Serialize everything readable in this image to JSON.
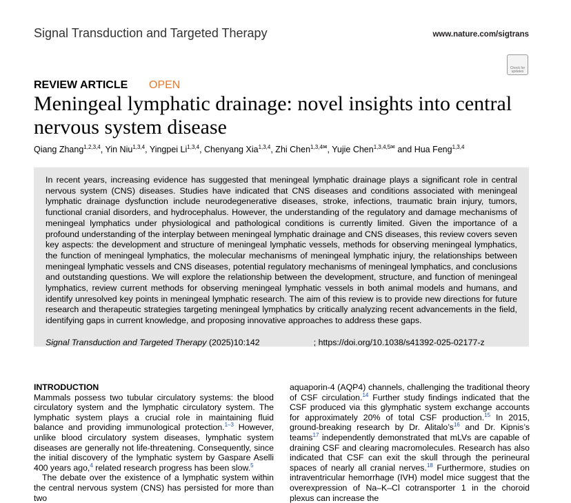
{
  "header": {
    "journal": "Signal Transduction and Targeted Therapy",
    "url": "www.nature.com/sigtrans",
    "badge": "Check for updates"
  },
  "article": {
    "type": "REVIEW ARTICLE",
    "access": "OPEN",
    "title": "Meningeal lymphatic drainage: novel insights into central nervous system disease",
    "authors": [
      "Qiang Zhang",
      {
        "sup": "1,2,3,4"
      },
      ", Yin Niu",
      {
        "sup": "1,3,4"
      },
      ", Yingpei Li",
      {
        "sup": "1,3,4"
      },
      ", Chenyang Xia",
      {
        "sup": "1,3,4"
      },
      ", Zhi Chen",
      {
        "sup": "1,3,4✉"
      },
      ", Yujie Chen",
      {
        "sup": "1,3,4,5✉"
      },
      " and Hua Feng",
      {
        "sup": "1,3,4"
      }
    ]
  },
  "abstract": {
    "text": "In recent years, increasing evidence has suggested that meningeal lymphatic drainage plays a significant role in central nervous system (CNS) diseases. Studies have indicated that CNS diseases and conditions associated with meningeal lymphatic drainage dysfunction include neurodegenerative diseases, stroke, infections, traumatic brain injury, tumors, functional cranial disorders, and hydrocephalus. However, the understanding of the regulatory and damage mechanisms of meningeal lymphatics under physiological and pathological conditions is currently limited. Given the importance of a profound understanding of the interplay between meningeal lymphatic drainage and CNS diseases, this review covers seven key aspects: the development and structure of meningeal lymphatic vessels, methods for observing meningeal lymphatics, the function of meningeal lymphatics, the molecular mechanisms of meningeal lymphatic injury, the relationships between meningeal lymphatic vessels and CNS diseases, potential regulatory mechanisms of meningeal lymphatics, and conclusions and outstanding questions. We will explore the relationship between the development, structure, and function of meningeal lymphatics, review current methods for observing meningeal lymphatic vessels in both animal models and humans, and identify unresolved key points in meningeal lymphatic research. The aim of this review is to provide new directions for future research and therapeutic strategies targeting meningeal lymphatics by critically analyzing recent advancements in the field, identifying gaps in current knowledge, and proposing innovative approaches to address these gaps.",
    "citation": {
      "journal": "Signal Transduction and Targeted Therapy",
      "volume": "(2025)10:142",
      "doi": "; https://doi.org/10.1038/s41392-025-02177-z"
    }
  },
  "body": {
    "heading": "INTRODUCTION",
    "left": [
      [
        "Mammals possess two tubular circulatory systems: the blood circulatory system and the lymphatic circulatory system. The lymphatic system plays a crucial role in maintaining fluid balance and providing immunological protection.",
        {
          "sup": "1–3"
        },
        " However, unlike blood circulatory system diseases, lymphatic system diseases are generally not life-threatening. Consequently, since the initial discovery of the lymphatic system by Gaspare Aselli 400 years ago,",
        {
          "sup": "4"
        },
        " related research progress has been slow.",
        {
          "sup": "5"
        }
      ],
      [
        "The debate over the existence of a lymphatic system within the central nervous system (CNS) has persisted for more than two"
      ]
    ],
    "right": [
      [
        "aquaporin-4 (AQP4) channels, challenging the traditional theory of CSF circulation.",
        {
          "sup": "14"
        },
        " Further study findings indicated that the CSF produced via this glymphatic system exchange accounts for approximately 20% of total CSF production.",
        {
          "sup": "15"
        },
        " In 2015, ground-breaking research by Dr. Alitalo’s",
        {
          "sup": "16"
        },
        " and Dr. Kipnis’s teams",
        {
          "sup": "17"
        },
        " independently demonstrated that mLVs are capable of draining CSF and clearing macromolecules. Research has also indicated that CSF can exit the skull through the perineural spaces of nearly all cranial nerves.",
        {
          "sup": "18"
        },
        " Furthermore, studies on intraventricular hemorrhage (IVH) model mice suggest that the overexpression of Na–K–Cl cotransporter 1 in the choroid plexus can increase the"
      ]
    ]
  }
}
